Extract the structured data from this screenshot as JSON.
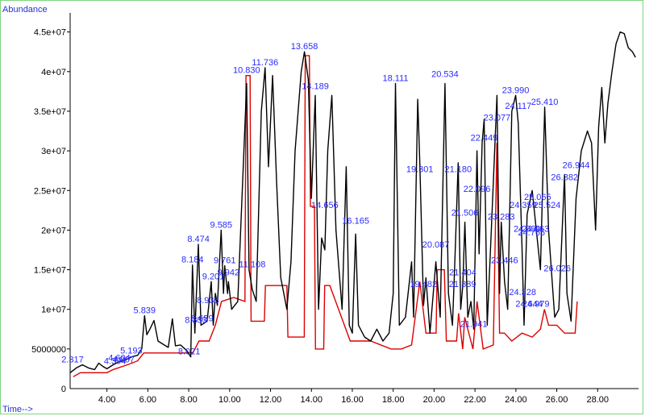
{
  "chart_data": {
    "type": "line",
    "ylabel": "Abundance",
    "xlabel": "Time-->",
    "xlim": [
      2.2,
      30.0
    ],
    "ylim": [
      0,
      47000000
    ],
    "grid": false,
    "x_ticks": [
      4.0,
      6.0,
      8.0,
      10.0,
      12.0,
      14.0,
      16.0,
      18.0,
      20.0,
      22.0,
      24.0,
      26.0,
      28.0
    ],
    "x_tick_labels": [
      "4.00",
      "6.00",
      "8.00",
      "10.00",
      "12.00",
      "14.00",
      "16.00",
      "18.00",
      "20.00",
      "22.00",
      "24.00",
      "26.00",
      "28.00"
    ],
    "y_ticks": [
      5000000,
      10000000,
      15000000,
      20000000,
      25000000,
      30000000,
      35000000,
      40000000,
      45000000
    ],
    "y_tick_labels": [
      "5000000",
      "1e+07",
      "1.5e+07",
      "2e+07",
      "2.5e+07",
      "3e+07",
      "3.5e+07",
      "4e+07",
      "4.5e+07"
    ],
    "colors": {
      "trace": "#000000",
      "integration": "#dd0000",
      "peak_labels": "#2a2aff",
      "axis_titles": "#2233cc",
      "frame": "#7fd67f"
    },
    "series": [
      {
        "values": [
          [
            2.2,
            2000000.0
          ],
          [
            2.5,
            2600000.0
          ],
          [
            2.8,
            3000000.0
          ],
          [
            3.1,
            2600000.0
          ],
          [
            3.4,
            2400000.0
          ],
          [
            3.6,
            3200000.0
          ],
          [
            3.8,
            2800000.0
          ],
          [
            4.0,
            2500000.0
          ],
          [
            4.3,
            3000000.0
          ],
          [
            4.6,
            3400000.0
          ],
          [
            4.9,
            3600000.0
          ],
          [
            5.2,
            4000000.0
          ],
          [
            5.5,
            4200000.0
          ],
          [
            5.7,
            5000000.0
          ],
          [
            5.84,
            9200000.0
          ],
          [
            5.95,
            6800000.0
          ],
          [
            6.1,
            7500000.0
          ],
          [
            6.3,
            8600000.0
          ],
          [
            6.5,
            6000000.0
          ],
          [
            6.8,
            5500000.0
          ],
          [
            7.0,
            5200000.0
          ],
          [
            7.2,
            8800000.0
          ],
          [
            7.35,
            5400000.0
          ],
          [
            7.6,
            5500000.0
          ],
          [
            7.9,
            4800000.0
          ],
          [
            8.1,
            4000000.0
          ],
          [
            8.18,
            15600000.0
          ],
          [
            8.3,
            7000000.0
          ],
          [
            8.47,
            18200000.0
          ],
          [
            8.6,
            8000000.0
          ],
          [
            8.9,
            8500000.0
          ],
          [
            9.1,
            13500000.0
          ],
          [
            9.2,
            8000000.0
          ],
          [
            9.3,
            12000000.0
          ],
          [
            9.4,
            10500000.0
          ],
          [
            9.585,
            20000000.0
          ],
          [
            9.7,
            12000000.0
          ],
          [
            9.76,
            15500000.0
          ],
          [
            9.9,
            12000000.0
          ],
          [
            9.94,
            13500000.0
          ],
          [
            10.1,
            10000000.0
          ],
          [
            10.4,
            11000000.0
          ],
          [
            10.83,
            38500000.0
          ],
          [
            10.95,
            15000000.0
          ],
          [
            11.108,
            12500000.0
          ],
          [
            11.3,
            11000000.0
          ],
          [
            11.55,
            35000000.0
          ],
          [
            11.736,
            40500000.0
          ],
          [
            11.9,
            28000000.0
          ],
          [
            12.1,
            39500000.0
          ],
          [
            12.3,
            26000000.0
          ],
          [
            12.5,
            14000000.0
          ],
          [
            12.8,
            10000000.0
          ],
          [
            13.0,
            16000000.0
          ],
          [
            13.2,
            30000000.0
          ],
          [
            13.5,
            40000000.0
          ],
          [
            13.658,
            42500000.0
          ],
          [
            13.85,
            39000000.0
          ],
          [
            14.0,
            24000000.0
          ],
          [
            14.189,
            37000000.0
          ],
          [
            14.35,
            10000000.0
          ],
          [
            14.5,
            19000000.0
          ],
          [
            14.656,
            17500000.0
          ],
          [
            14.8,
            30000000.0
          ],
          [
            15.0,
            37000000.0
          ],
          [
            15.2,
            20000000.0
          ],
          [
            15.5,
            10000000.0
          ],
          [
            15.7,
            28000000.0
          ],
          [
            15.85,
            8000000.0
          ],
          [
            16.0,
            7000000.0
          ],
          [
            16.165,
            19500000.0
          ],
          [
            16.3,
            8000000.0
          ],
          [
            16.6,
            6500000.0
          ],
          [
            16.9,
            6000000.0
          ],
          [
            17.2,
            7500000.0
          ],
          [
            17.5,
            6000000.0
          ],
          [
            17.8,
            7000000.0
          ],
          [
            18.0,
            12000000.0
          ],
          [
            18.111,
            38500000.0
          ],
          [
            18.3,
            8000000.0
          ],
          [
            18.6,
            9000000.0
          ],
          [
            18.9,
            16000000.0
          ],
          [
            19.0,
            9000000.0
          ],
          [
            19.2,
            36500000.0
          ],
          [
            19.301,
            28500000.0
          ],
          [
            19.482,
            10500000.0
          ],
          [
            19.6,
            14000000.0
          ],
          [
            19.8,
            7000000.0
          ],
          [
            20.087,
            16000000.0
          ],
          [
            20.3,
            9000000.0
          ],
          [
            20.534,
            38500000.0
          ],
          [
            20.7,
            12000000.0
          ],
          [
            20.9,
            8000000.0
          ],
          [
            21.0,
            15000000.0
          ],
          [
            21.18,
            28500000.0
          ],
          [
            21.3,
            10000000.0
          ],
          [
            21.404,
            13000000.0
          ],
          [
            21.506,
            21000000.0
          ],
          [
            21.65,
            9000000.0
          ],
          [
            21.8,
            11000000.0
          ],
          [
            21.941,
            7500000.0
          ],
          [
            22.096,
            30000000.0
          ],
          [
            22.2,
            17000000.0
          ],
          [
            22.35,
            31000000.0
          ],
          [
            22.449,
            34000000.0
          ],
          [
            22.6,
            8000000.0
          ],
          [
            22.8,
            20000000.0
          ],
          [
            23.077,
            37000000.0
          ],
          [
            23.2,
            12000000.0
          ],
          [
            23.283,
            21000000.0
          ],
          [
            23.446,
            13500000.0
          ],
          [
            23.6,
            10000000.0
          ],
          [
            23.8,
            35000000.0
          ],
          [
            23.99,
            37000000.0
          ],
          [
            24.117,
            33500000.0
          ],
          [
            24.3,
            18000000.0
          ],
          [
            24.4,
            8000000.0
          ],
          [
            24.55,
            22000000.0
          ],
          [
            24.8,
            25000000.0
          ],
          [
            25.0,
            20000000.0
          ],
          [
            25.2,
            15000000.0
          ],
          [
            25.41,
            35500000.0
          ],
          [
            25.6,
            20000000.0
          ],
          [
            25.9,
            9000000.0
          ],
          [
            26.1,
            10000000.0
          ],
          [
            26.382,
            27000000.0
          ],
          [
            26.5,
            12000000.0
          ],
          [
            26.7,
            8500000.0
          ],
          [
            26.944,
            24000000.0
          ],
          [
            27.2,
            30000000.0
          ],
          [
            27.5,
            32500000.0
          ],
          [
            27.7,
            31000000.0
          ],
          [
            27.9,
            20000000.0
          ],
          [
            28.05,
            33000000.0
          ],
          [
            28.2,
            38000000.0
          ],
          [
            28.35,
            31000000.0
          ],
          [
            28.5,
            36000000.0
          ],
          [
            28.7,
            40000000.0
          ],
          [
            28.9,
            43500000.0
          ],
          [
            29.1,
            45000000.0
          ],
          [
            29.3,
            44800000.0
          ],
          [
            29.5,
            43000000.0
          ],
          [
            29.7,
            42500000.0
          ],
          [
            29.85,
            41800000.0
          ]
        ]
      },
      {
        "values": [
          [
            2.35,
            1500000.0
          ],
          [
            2.7,
            2000000.0
          ],
          [
            4.0,
            2000000.0
          ],
          [
            4.3,
            2400000.0
          ],
          [
            5.0,
            3000000.0
          ],
          [
            5.5,
            3500000.0
          ],
          [
            5.8,
            4500000.0
          ],
          [
            8.2,
            4500000.0
          ],
          [
            8.5,
            6000000.0
          ],
          [
            9.0,
            6000000.0
          ],
          [
            9.3,
            8000000.0
          ],
          [
            9.6,
            11000000.0
          ],
          [
            10.2,
            11500000.0
          ],
          [
            10.75,
            11000000.0
          ],
          [
            10.8,
            39500000.0
          ],
          [
            11.0,
            39500000.0
          ],
          [
            11.05,
            8500000.0
          ],
          [
            11.7,
            8500000.0
          ],
          [
            11.75,
            13000000.0
          ],
          [
            12.8,
            13000000.0
          ],
          [
            12.85,
            6500000.0
          ],
          [
            13.65,
            6500000.0
          ],
          [
            13.7,
            42000000.0
          ],
          [
            13.9,
            42000000.0
          ],
          [
            13.95,
            23000000.0
          ],
          [
            14.15,
            23000000.0
          ],
          [
            14.2,
            5000000.0
          ],
          [
            14.6,
            5000000.0
          ],
          [
            14.65,
            13000000.0
          ],
          [
            14.9,
            13000000.0
          ],
          [
            15.9,
            6000000.0
          ],
          [
            16.9,
            6000000.0
          ],
          [
            17.9,
            5000000.0
          ],
          [
            18.4,
            5000000.0
          ],
          [
            18.9,
            5500000.0
          ],
          [
            19.3,
            13500000.0
          ],
          [
            19.6,
            7000000.0
          ],
          [
            20.1,
            7000000.0
          ],
          [
            20.15,
            15000000.0
          ],
          [
            20.5,
            15000000.0
          ],
          [
            20.6,
            6000000.0
          ],
          [
            21.1,
            6000000.0
          ],
          [
            21.2,
            9500000.0
          ],
          [
            21.4,
            5000000.0
          ],
          [
            21.5,
            9000000.0
          ],
          [
            21.9,
            5000000.0
          ],
          [
            22.1,
            11000000.0
          ],
          [
            22.4,
            5000000.0
          ],
          [
            22.9,
            5500000.0
          ],
          [
            23.07,
            31000000.0
          ],
          [
            23.2,
            7000000.0
          ],
          [
            23.44,
            7000000.0
          ],
          [
            23.8,
            6000000.0
          ],
          [
            24.3,
            7000000.0
          ],
          [
            24.8,
            6500000.0
          ],
          [
            25.2,
            7500000.0
          ],
          [
            25.4,
            10000000.0
          ],
          [
            25.6,
            8000000.0
          ],
          [
            26.0,
            8000000.0
          ],
          [
            26.38,
            7000000.0
          ],
          [
            26.9,
            7000000.0
          ],
          [
            27.0,
            11000000.0
          ]
        ]
      }
    ],
    "peak_labels": [
      {
        "x": 2.317,
        "y": 3000000.0,
        "label": "2.317"
      },
      {
        "x": 4.394,
        "y": 2800000.0,
        "label": "4.394"
      },
      {
        "x": 4.604,
        "y": 3200000.0,
        "label": "4.604"
      },
      {
        "x": 4.807,
        "y": 3000000.0,
        "label": "4.807"
      },
      {
        "x": 5.193,
        "y": 4100000.0,
        "label": "5.193"
      },
      {
        "x": 5.839,
        "y": 9200000.0,
        "label": "5.839"
      },
      {
        "x": 8.021,
        "y": 4000000.0,
        "label": "8.021"
      },
      {
        "x": 8.184,
        "y": 15600000.0,
        "label": "8.184"
      },
      {
        "x": 8.353,
        "y": 8000000.0,
        "label": "8.353"
      },
      {
        "x": 8.474,
        "y": 18200000.0,
        "label": "8.474"
      },
      {
        "x": 8.659,
        "y": 8200000.0,
        "label": "8.659"
      },
      {
        "x": 8.938,
        "y": 10500000.0,
        "label": "8.938"
      },
      {
        "x": 9.201,
        "y": 13500000.0,
        "label": "9.201"
      },
      {
        "x": 9.585,
        "y": 20000000.0,
        "label": "9.585"
      },
      {
        "x": 9.761,
        "y": 15500000.0,
        "label": "9.761"
      },
      {
        "x": 9.942,
        "y": 14000000.0,
        "label": "9.942"
      },
      {
        "x": 10.83,
        "y": 39500000.0,
        "label": "10.830"
      },
      {
        "x": 11.108,
        "y": 15000000.0,
        "label": "11.108"
      },
      {
        "x": 11.736,
        "y": 40500000.0,
        "label": "11.736"
      },
      {
        "x": 13.658,
        "y": 42500000.0,
        "label": "13.658"
      },
      {
        "x": 14.189,
        "y": 37500000.0,
        "label": "14.189"
      },
      {
        "x": 14.656,
        "y": 22500000.0,
        "label": "14.656"
      },
      {
        "x": 16.165,
        "y": 20500000.0,
        "label": "16.165"
      },
      {
        "x": 18.111,
        "y": 38500000.0,
        "label": "18.111"
      },
      {
        "x": 19.301,
        "y": 27000000.0,
        "label": "19.301"
      },
      {
        "x": 19.482,
        "y": 12500000.0,
        "label": "19.482"
      },
      {
        "x": 20.087,
        "y": 17500000.0,
        "label": "20.087"
      },
      {
        "x": 20.534,
        "y": 39000000.0,
        "label": "20.534"
      },
      {
        "x": 21.18,
        "y": 27000000.0,
        "label": "21.180"
      },
      {
        "x": 21.404,
        "y": 14000000.0,
        "label": "21.404"
      },
      {
        "x": 21.506,
        "y": 21500000.0,
        "label": "21.506"
      },
      {
        "x": 21.389,
        "y": 12500000.0,
        "label": "21.389"
      },
      {
        "x": 21.941,
        "y": 7500000.0,
        "label": "21.941"
      },
      {
        "x": 22.096,
        "y": 24500000.0,
        "label": "22.096"
      },
      {
        "x": 22.449,
        "y": 31000000.0,
        "label": "22.449"
      },
      {
        "x": 23.077,
        "y": 33500000.0,
        "label": "23.077"
      },
      {
        "x": 23.283,
        "y": 21000000.0,
        "label": "23.283"
      },
      {
        "x": 23.446,
        "y": 15500000.0,
        "label": "23.446"
      },
      {
        "x": 23.99,
        "y": 37000000.0,
        "label": "23.990"
      },
      {
        "x": 24.117,
        "y": 35000000.0,
        "label": "24.117"
      },
      {
        "x": 24.328,
        "y": 11500000.0,
        "label": "24.328"
      },
      {
        "x": 24.359,
        "y": 22500000.0,
        "label": "24.359"
      },
      {
        "x": 24.55,
        "y": 19500000.0,
        "label": "24.550"
      },
      {
        "x": 24.644,
        "y": 10000000.0,
        "label": "24.644"
      },
      {
        "x": 25.065,
        "y": 23500000.0,
        "label": "25.065"
      },
      {
        "x": 25.41,
        "y": 35500000.0,
        "label": "25.410"
      },
      {
        "x": 25.524,
        "y": 22500000.0,
        "label": "25.524"
      },
      {
        "x": 24.979,
        "y": 10000000.0,
        "label": "24.979"
      },
      {
        "x": 26.026,
        "y": 14500000.0,
        "label": "26.026"
      },
      {
        "x": 26.382,
        "y": 26000000.0,
        "label": "26.382"
      },
      {
        "x": 26.944,
        "y": 27500000.0,
        "label": "26.944"
      },
      {
        "x": 24.963,
        "y": 19500000.0,
        "label": "24.963"
      },
      {
        "x": 24.765,
        "y": 19000000.0,
        "label": "24.765"
      }
    ]
  }
}
